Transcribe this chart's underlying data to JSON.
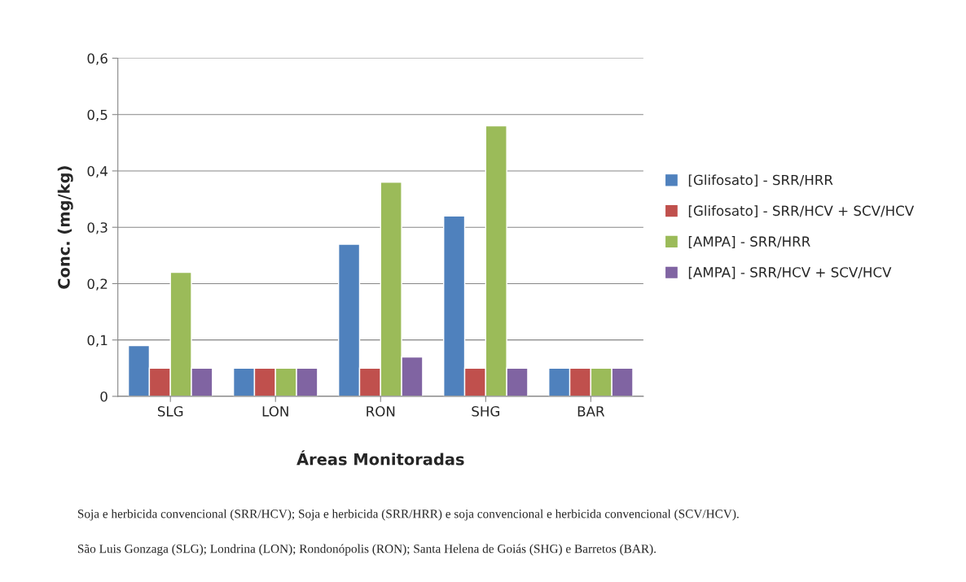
{
  "chart_data": {
    "type": "bar",
    "xlabel": "Áreas Monitoradas",
    "ylabel": "Conc. (mg/kg)",
    "categories": [
      "SLG",
      "LON",
      "RON",
      "SHG",
      "BAR"
    ],
    "series": [
      {
        "name": "[Glifosato] - SRR/HRR",
        "color": "#4f81bd",
        "values": [
          0.09,
          0.05,
          0.27,
          0.32,
          0.05
        ]
      },
      {
        "name": "[Glifosato] - SRR/HCV + SCV/HCV",
        "color": "#c0504d",
        "values": [
          0.05,
          0.05,
          0.05,
          0.05,
          0.05
        ]
      },
      {
        "name": "[AMPA] - SRR/HRR",
        "color": "#9bbb59",
        "values": [
          0.22,
          0.05,
          0.38,
          0.48,
          0.05
        ]
      },
      {
        "name": "[AMPA] - SRR/HCV + SCV/HCV",
        "color": "#8064a2",
        "values": [
          0.05,
          0.05,
          0.07,
          0.05,
          0.05
        ]
      }
    ],
    "ylim": [
      0,
      0.6
    ],
    "yticks": [
      0,
      {
        "value": 0.1,
        "label": "0,1"
      },
      {
        "value": 0.2,
        "label": "0,2"
      },
      {
        "value": 0.3,
        "label": "0,3"
      },
      {
        "value": 0.4,
        "label": "0,4"
      },
      {
        "value": 0.5,
        "label": "0,5"
      },
      {
        "value": 0.6,
        "label": "0,6"
      }
    ],
    "grid": "y",
    "legend": "right",
    "annotations": [
      "Soja e herbicida convencional (SRR/HCV); Soja e herbicida (SRR/HRR) e soja convencional e herbicida convencional (SCV/HCV).",
      "São Luis Gonzaga (SLG); Londrina (LON); Rondonópolis (RON); Santa Helena de Goiás (SHG) e Barretos (BAR)."
    ]
  }
}
